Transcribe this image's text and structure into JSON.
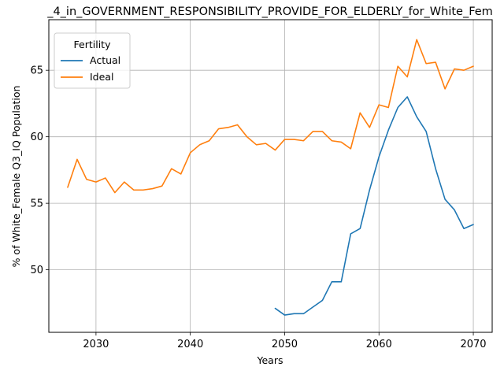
{
  "chart_data": {
    "type": "line",
    "title": "_4_in_GOVERNMENT_RESPONSIBILITY_PROVIDE_FOR_ELDERLY_for_White_Fem",
    "xlabel": "Years",
    "ylabel": "% of White_Female Q3_IQ Population",
    "xlim": [
      2025,
      2072
    ],
    "ylim": [
      45.3,
      68.8
    ],
    "xticks": [
      2030,
      2040,
      2050,
      2060,
      2070
    ],
    "yticks": [
      50,
      55,
      60,
      65
    ],
    "grid": true,
    "legend": {
      "title": "Fertility",
      "placement": "top-left"
    },
    "series": [
      {
        "name": "Actual",
        "color": "#1f77b4",
        "x": [
          2049,
          2050,
          2051,
          2052,
          2053,
          2054,
          2055,
          2056,
          2057,
          2058,
          2059,
          2060,
          2061,
          2062,
          2063,
          2064,
          2065,
          2066,
          2067,
          2068,
          2069,
          2070
        ],
        "y": [
          47.1,
          46.6,
          46.7,
          46.7,
          47.2,
          47.7,
          49.1,
          49.1,
          52.7,
          53.1,
          56.0,
          58.5,
          60.5,
          62.2,
          63.0,
          61.5,
          60.4,
          57.6,
          55.3,
          54.5,
          53.1,
          53.4
        ]
      },
      {
        "name": "Ideal",
        "color": "#ff7f0e",
        "x": [
          2027,
          2028,
          2029,
          2030,
          2031,
          2032,
          2033,
          2034,
          2035,
          2036,
          2037,
          2038,
          2039,
          2040,
          2041,
          2042,
          2043,
          2044,
          2045,
          2046,
          2047,
          2048,
          2049,
          2050,
          2051,
          2052,
          2053,
          2054,
          2055,
          2056,
          2057,
          2058,
          2059,
          2060,
          2061,
          2062,
          2063,
          2064,
          2065,
          2066,
          2067,
          2068,
          2069,
          2070
        ],
        "y": [
          56.2,
          58.3,
          56.8,
          56.6,
          56.9,
          55.8,
          56.6,
          56.0,
          56.0,
          56.1,
          56.3,
          57.6,
          57.2,
          58.8,
          59.4,
          59.7,
          60.6,
          60.7,
          60.9,
          60.0,
          59.4,
          59.5,
          59.0,
          59.8,
          59.8,
          59.7,
          60.4,
          60.4,
          59.7,
          59.6,
          59.1,
          61.8,
          60.7,
          62.4,
          62.2,
          65.3,
          64.5,
          67.3,
          65.5,
          65.6,
          63.6,
          65.1,
          65.0,
          65.3
        ]
      }
    ]
  }
}
